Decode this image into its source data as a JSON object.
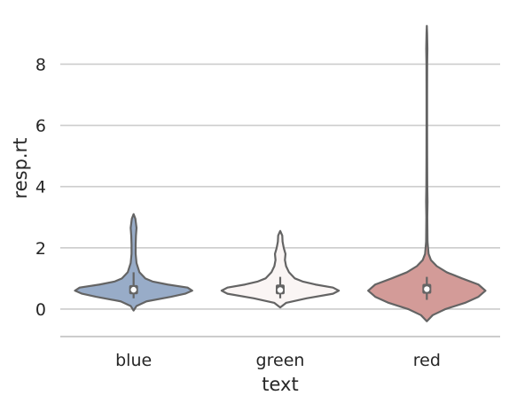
{
  "chart_data": {
    "type": "violin",
    "xlabel": "text",
    "ylabel": "resp.rt",
    "categories": [
      "blue",
      "green",
      "red"
    ],
    "ylim": [
      -0.9,
      9.4
    ],
    "yticks": [
      0,
      2,
      4,
      6,
      8
    ],
    "grid": "horizontal",
    "colors": {
      "blue": "#98acc8",
      "green": "#faf5f4",
      "red": "#d39b98",
      "outline": "#646464",
      "grid": "#cccccc",
      "spine": "#cccccc"
    },
    "violins": [
      {
        "category": "blue",
        "min": -0.05,
        "max": 3.1,
        "q1": 0.48,
        "median": 0.63,
        "q3": 0.78,
        "whisker_low": 0.35,
        "whisker_high": 1.2,
        "density": [
          [
            -0.05,
            0.0
          ],
          [
            0.1,
            0.05
          ],
          [
            0.25,
            0.22
          ],
          [
            0.4,
            0.64
          ],
          [
            0.5,
            0.88
          ],
          [
            0.6,
            1.0
          ],
          [
            0.7,
            0.92
          ],
          [
            0.8,
            0.58
          ],
          [
            0.9,
            0.32
          ],
          [
            1.0,
            0.2
          ],
          [
            1.2,
            0.1
          ],
          [
            1.5,
            0.05
          ],
          [
            1.8,
            0.035
          ],
          [
            2.1,
            0.035
          ],
          [
            2.4,
            0.04
          ],
          [
            2.65,
            0.05
          ],
          [
            2.8,
            0.04
          ],
          [
            2.95,
            0.03
          ],
          [
            3.1,
            0.0
          ]
        ]
      },
      {
        "category": "green",
        "min": 0.05,
        "max": 2.55,
        "q1": 0.48,
        "median": 0.62,
        "q3": 0.8,
        "whisker_low": 0.35,
        "whisker_high": 1.05,
        "density": [
          [
            0.05,
            0.0
          ],
          [
            0.2,
            0.1
          ],
          [
            0.35,
            0.45
          ],
          [
            0.5,
            0.9
          ],
          [
            0.6,
            1.0
          ],
          [
            0.7,
            0.9
          ],
          [
            0.8,
            0.6
          ],
          [
            0.9,
            0.38
          ],
          [
            1.0,
            0.25
          ],
          [
            1.2,
            0.15
          ],
          [
            1.4,
            0.1
          ],
          [
            1.6,
            0.08
          ],
          [
            1.8,
            0.09
          ],
          [
            2.0,
            0.06
          ],
          [
            2.2,
            0.04
          ],
          [
            2.4,
            0.035
          ],
          [
            2.55,
            0.0
          ]
        ]
      },
      {
        "category": "red",
        "min": -0.4,
        "max": 9.25,
        "q1": 0.5,
        "median": 0.65,
        "q3": 0.82,
        "whisker_low": 0.3,
        "whisker_high": 1.05,
        "density": [
          [
            -0.4,
            0.0
          ],
          [
            -0.2,
            0.1
          ],
          [
            0.0,
            0.32
          ],
          [
            0.2,
            0.65
          ],
          [
            0.4,
            0.88
          ],
          [
            0.6,
            1.0
          ],
          [
            0.8,
            0.88
          ],
          [
            1.0,
            0.6
          ],
          [
            1.2,
            0.34
          ],
          [
            1.4,
            0.17
          ],
          [
            1.6,
            0.07
          ],
          [
            1.8,
            0.03
          ],
          [
            2.2,
            0.012
          ],
          [
            3.0,
            0.008
          ],
          [
            3.5,
            0.012
          ],
          [
            4.0,
            0.008
          ],
          [
            5.0,
            0.006
          ],
          [
            6.0,
            0.005
          ],
          [
            7.0,
            0.005
          ],
          [
            8.0,
            0.006
          ],
          [
            8.5,
            0.01
          ],
          [
            9.0,
            0.005
          ],
          [
            9.25,
            0.0
          ]
        ]
      }
    ]
  }
}
